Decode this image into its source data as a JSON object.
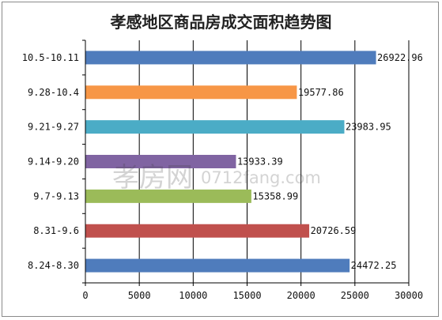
{
  "chart_data": {
    "type": "bar",
    "orientation": "horizontal",
    "title": "孝感地区商品房成交面积趋势图",
    "categories": [
      "10.5-10.11",
      "9.28-10.4",
      "9.21-9.27",
      "9.14-9.20",
      "9.7-9.13",
      "8.31-9.6",
      "8.24-8.30"
    ],
    "values": [
      26922.96,
      19577.86,
      23983.95,
      13933.39,
      15358.99,
      20726.59,
      24472.25
    ],
    "value_labels": [
      "26922.96",
      "19577.86",
      "23983.95",
      "13933.39",
      "15358.99",
      "20726.59",
      "24472.25"
    ],
    "colors": [
      "#4f7cbc",
      "#f79646",
      "#4bacc6",
      "#8064a2",
      "#9bbb59",
      "#c0504d",
      "#4f7cbc"
    ],
    "xlim": [
      0,
      30000
    ],
    "x_ticks": [
      "0",
      "5000",
      "10000",
      "15000",
      "20000",
      "25000",
      "30000"
    ],
    "grid": true,
    "xlabel": "",
    "ylabel": ""
  },
  "watermark": {
    "brand": "孝房网",
    "site": "0712fang.com"
  }
}
